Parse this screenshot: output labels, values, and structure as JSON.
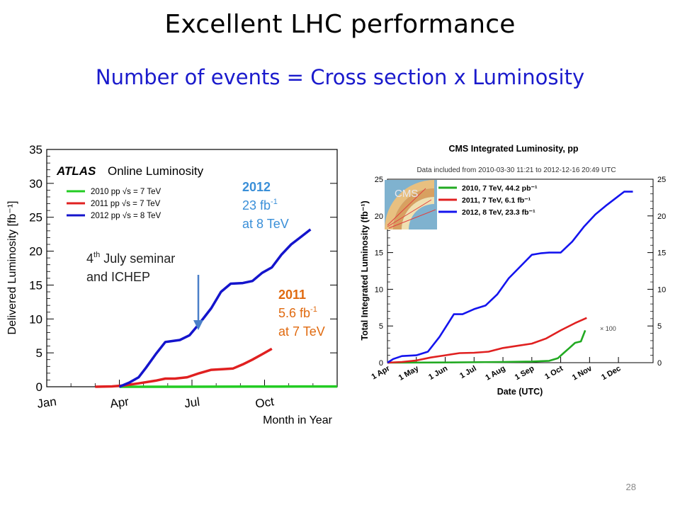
{
  "slide": {
    "title": "Excellent LHC performance",
    "subtitle": "Number of events = Cross section x Luminosity",
    "page_number": "28"
  },
  "colors": {
    "subtitle": "#1a1acc",
    "green": "#22cc22",
    "red": "#e02020",
    "blue": "#1414cc",
    "annot_blue": "#3a8fd8",
    "annot_orange": "#e06a10"
  },
  "chart_data": [
    {
      "type": "line",
      "title": "ATLAS Online Luminosity",
      "title_prefix": "ATLAS",
      "title_rest": "Online Luminosity",
      "xlabel": "Month in Year",
      "ylabel": "Delivered Luminosity [fb⁻¹]",
      "x_ticks": [
        "Jan",
        "Apr",
        "Jul",
        "Oct"
      ],
      "y_ticks": [
        "0",
        "5",
        "10",
        "15",
        "20",
        "25",
        "30",
        "35"
      ],
      "ylim": [
        0,
        35
      ],
      "xlim_month": [
        1,
        13
      ],
      "legend": [
        "2010 pp √s = 7 TeV",
        "2011 pp √s = 7 TeV",
        "2012 pp √s = 8 TeV"
      ],
      "legend_position": "top-left",
      "series": [
        {
          "name": "2010 pp √s = 7 TeV",
          "color": "#22cc22",
          "x": [
            4.0,
            6.0,
            8.0,
            9.5,
            10.5,
            11.5,
            13.0
          ],
          "y": [
            0,
            0.003,
            0.01,
            0.02,
            0.035,
            0.045,
            0.045
          ]
        },
        {
          "name": "2011 pp √s = 7 TeV",
          "color": "#e02020",
          "x": [
            3.0,
            3.7,
            4.2,
            4.8,
            5.5,
            5.9,
            6.3,
            6.8,
            7.3,
            7.8,
            8.3,
            8.7,
            9.1,
            9.5,
            9.9,
            10.3
          ],
          "y": [
            0,
            0.05,
            0.2,
            0.5,
            0.9,
            1.2,
            1.2,
            1.4,
            2.0,
            2.5,
            2.6,
            2.7,
            3.3,
            4.0,
            4.8,
            5.6
          ]
        },
        {
          "name": "2012 pp √s = 8 TeV",
          "color": "#1414cc",
          "x": [
            4.0,
            4.4,
            4.8,
            5.1,
            5.5,
            5.9,
            6.1,
            6.5,
            6.9,
            7.3,
            7.8,
            8.2,
            8.6,
            9.1,
            9.5,
            9.9,
            10.3,
            10.7,
            11.1,
            11.5,
            11.9
          ],
          "y": [
            0,
            0.6,
            1.4,
            2.8,
            4.8,
            6.6,
            6.7,
            6.9,
            7.6,
            9.3,
            11.6,
            14.0,
            15.2,
            15.3,
            15.6,
            16.8,
            17.6,
            19.5,
            21.0,
            22.1,
            23.2
          ]
        }
      ],
      "annotations": {
        "y2012": "2012",
        "lumi2012": "23 fb",
        "lumi2012_sup": "-1",
        "energy2012": "at 8 TeV",
        "y2011": "2011",
        "lumi2011": "5.6 fb",
        "lumi2011_sup": "-1",
        "energy2011": "at 7 TeV",
        "seminar_line1_a": "4",
        "seminar_line1_sup": "th",
        "seminar_line1_b": " July seminar",
        "seminar_line2": "and ICHEP"
      }
    },
    {
      "type": "line",
      "title": "CMS Integrated Luminosity, pp",
      "subtitle": "Data included from 2010-03-30 11:21 to 2012-12-16 20:49 UTC",
      "xlabel": "Date (UTC)",
      "ylabel": "Total Integrated Luminosity (fb⁻¹)",
      "x_ticks": [
        "1 Apr",
        "1 May",
        "1 Jun",
        "1 Jul",
        "1 Aug",
        "1 Sep",
        "1 Oct",
        "1 Nov",
        "1 Dec"
      ],
      "y_ticks": [
        "0",
        "5",
        "10",
        "15",
        "20",
        "25"
      ],
      "ylim": [
        0,
        25
      ],
      "xlim_month": [
        4,
        13.2
      ],
      "legend": [
        "2010, 7 TeV, 44.2 pb⁻¹",
        "2011, 7 TeV, 6.1 fb⁻¹",
        "2012, 8 TeV, 23.3 fb⁻¹"
      ],
      "legend_position": "top-left",
      "scale_note": "× 100",
      "series": [
        {
          "name": "2010, 7 TeV, 44.2 pb⁻¹",
          "color": "#22aa22",
          "x": [
            4.0,
            6.0,
            8.0,
            9.0,
            9.6,
            9.9,
            10.1,
            10.3,
            10.5,
            10.7,
            10.85
          ],
          "y": [
            0,
            0.03,
            0.1,
            0.15,
            0.25,
            0.6,
            1.3,
            2.0,
            2.7,
            2.9,
            4.4
          ]
        },
        {
          "name": "2011, 7 TeV, 6.1 fb⁻¹",
          "color": "#e02020",
          "x": [
            4.0,
            4.5,
            5.0,
            5.5,
            6.0,
            6.5,
            7.0,
            7.5,
            8.0,
            8.5,
            9.0,
            9.5,
            10.0,
            10.5,
            10.9
          ],
          "y": [
            0,
            0.1,
            0.3,
            0.7,
            1.0,
            1.3,
            1.35,
            1.5,
            2.0,
            2.3,
            2.6,
            3.3,
            4.4,
            5.4,
            6.1
          ]
        },
        {
          "name": "2012, 8 TeV, 23.3 fb⁻¹",
          "color": "#1414ee",
          "x": [
            4.0,
            4.2,
            4.5,
            5.0,
            5.4,
            5.8,
            6.3,
            6.6,
            7.0,
            7.4,
            7.8,
            8.2,
            8.7,
            9.0,
            9.3,
            9.6,
            10.0,
            10.4,
            10.8,
            11.2,
            11.6,
            12.0,
            12.2,
            12.5
          ],
          "y": [
            0,
            0.5,
            0.9,
            1.0,
            1.5,
            3.5,
            6.6,
            6.6,
            7.3,
            7.8,
            9.3,
            11.5,
            13.5,
            14.7,
            14.9,
            15.0,
            15.0,
            16.5,
            18.5,
            20.2,
            21.5,
            22.7,
            23.3,
            23.3
          ]
        }
      ]
    }
  ]
}
